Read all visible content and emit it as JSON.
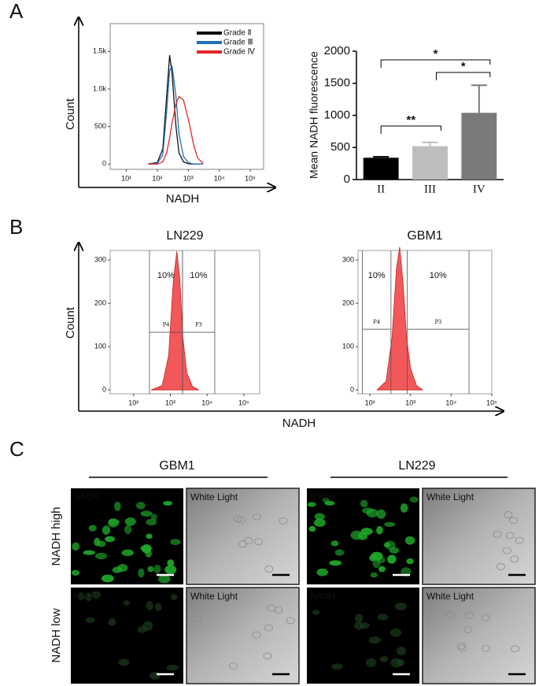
{
  "panel_labels": [
    "A",
    "B",
    "C"
  ],
  "chart_data": [
    {
      "type": "line",
      "x_scale": "log",
      "xlabel": "NADH",
      "ylabel": "Count",
      "xlim": [
        3,
        270000
      ],
      "ylim": [
        -70,
        1870
      ],
      "xticks": [
        {
          "value": 10,
          "label": "10¹"
        },
        {
          "value": 100,
          "label": "10²"
        },
        {
          "value": 1000,
          "label": "10³"
        },
        {
          "value": 10000,
          "label": "10⁴"
        },
        {
          "value": 100000,
          "label": "10⁵"
        }
      ],
      "yticks": [
        0,
        500,
        {
          "value": 1000,
          "label": "1.0k"
        },
        {
          "value": 1500,
          "label": "1.5k"
        }
      ],
      "legend": "upper right",
      "x": [
        50,
        100,
        150,
        200,
        250,
        300,
        400,
        500,
        700,
        1000,
        1500,
        2000,
        3000
      ],
      "series": [
        {
          "name": "Grade Ⅱ",
          "color": "#111111",
          "values": [
            0,
            20,
            200,
            900,
            1450,
            1200,
            500,
            150,
            30,
            5,
            0,
            0,
            0
          ]
        },
        {
          "name": "Grade Ⅲ",
          "color": "#1f6fb5",
          "values": [
            0,
            10,
            120,
            700,
            1250,
            1300,
            900,
            400,
            100,
            20,
            0,
            0,
            0
          ]
        },
        {
          "name": "Grade Ⅳ",
          "color": "#e0262b",
          "values": [
            0,
            0,
            30,
            150,
            350,
            550,
            800,
            900,
            850,
            600,
            250,
            80,
            10
          ]
        }
      ]
    },
    {
      "type": "bar",
      "ylabel": "Mean NADH fluorescence",
      "categories": [
        "II",
        "III",
        "IV"
      ],
      "values": [
        340,
        520,
        1040
      ],
      "errors": [
        15,
        60,
        430
      ],
      "colors": [
        "#000000",
        "#bdbdbd",
        "#7a7a7a"
      ],
      "ylim": [
        0,
        2000
      ],
      "yticks": [
        0,
        500,
        1000,
        1500,
        2000
      ],
      "annotations": [
        {
          "label": "**",
          "between": [
            0,
            1
          ]
        },
        {
          "label": "*",
          "between": [
            1,
            2
          ]
        },
        {
          "label": "*",
          "between": [
            0,
            2
          ]
        }
      ]
    },
    {
      "type": "area",
      "title": "LN229",
      "x_scale": "log",
      "xlabel": "NADH",
      "ylabel": "Count",
      "color": "#f2585b",
      "xlim": [
        23,
        270000
      ],
      "ylim": [
        -9,
        322
      ],
      "xticks": [
        {
          "value": 100,
          "label": "10²"
        },
        {
          "value": 1000,
          "label": "10³"
        },
        {
          "value": 10000,
          "label": "10⁴"
        },
        {
          "value": 100000,
          "label": "10⁵"
        }
      ],
      "yticks": [
        0,
        100,
        200,
        300
      ],
      "x": [
        300,
        600,
        900,
        1200,
        1500,
        1800,
        2200,
        2800,
        4000,
        6000
      ],
      "values": [
        0,
        10,
        80,
        250,
        320,
        260,
        120,
        40,
        8,
        0
      ],
      "gates": [
        {
          "name": "P4",
          "label": "10%",
          "range": [
            270,
            2140
          ],
          "level": 133
        },
        {
          "name": "P3",
          "label": "10%",
          "range": [
            2140,
            16200
          ],
          "level": 133
        }
      ]
    },
    {
      "type": "area",
      "title": "GBM1",
      "x_scale": "log",
      "color": "#f2585b",
      "xlim": [
        51,
        100000
      ],
      "ylim": [
        -9,
        322
      ],
      "xticks": [
        {
          "value": 100,
          "label": "10²"
        },
        {
          "value": 1000,
          "label": "10³"
        },
        {
          "value": 10000,
          "label": "10⁴"
        },
        {
          "value": 100000,
          "label": "10⁵"
        }
      ],
      "yticks": [
        0,
        100,
        200,
        300
      ],
      "x": [
        150,
        250,
        350,
        450,
        540,
        650,
        800,
        1000,
        1400,
        2000
      ],
      "values": [
        0,
        20,
        120,
        280,
        330,
        250,
        120,
        50,
        10,
        0
      ],
      "gates": [
        {
          "name": "P4",
          "label": "10%",
          "range": [
            65,
            330
          ],
          "level": 140
        },
        {
          "name": "P3",
          "label": "10%",
          "range": [
            830,
            27500
          ],
          "level": 140
        }
      ]
    }
  ],
  "images": {
    "columns": [
      "GBM1",
      "LN229"
    ],
    "rows": [
      "NADH high",
      "NADH low"
    ],
    "channels": [
      "NADH",
      "White Light"
    ]
  }
}
